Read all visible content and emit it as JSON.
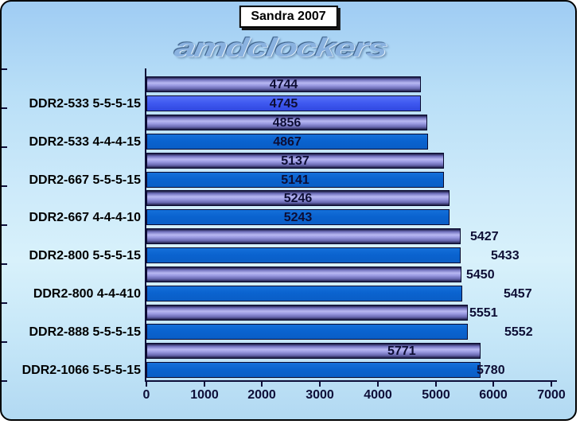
{
  "title": "Sandra 2007",
  "watermark": "amdclockers",
  "chart_data": {
    "type": "bar",
    "orientation": "horizontal",
    "title": "Sandra 2007",
    "xlabel": "",
    "ylabel": "",
    "xlim": [
      0,
      7000
    ],
    "xticks": [
      0,
      1000,
      2000,
      3000,
      4000,
      5000,
      6000,
      7000
    ],
    "grid": false,
    "legend": "none",
    "categories": [
      "DDR2-533 5-5-5-15",
      "DDR2-533 4-4-4-15",
      "DDR2-667 5-5-5-15",
      "DDR2-667 4-4-4-10",
      "DDR2-800 5-5-5-15",
      "DDR2-800 4-4-410",
      "DDR2-888 5-5-5-15",
      "DDR2-1066 5-5-5-15"
    ],
    "series": [
      {
        "name": "series-1-purple",
        "color": "#9a9ae2",
        "values": [
          4744,
          4856,
          5137,
          5246,
          5427,
          5450,
          5551,
          5771
        ]
      },
      {
        "name": "series-2-blue",
        "color": "#0a63cf",
        "values": [
          4745,
          4867,
          5141,
          5243,
          5433,
          5457,
          5552,
          5780
        ]
      }
    ]
  },
  "bars": [
    {
      "value": 4744,
      "series": "purple",
      "label_mode": "center",
      "label_dx": 0
    },
    {
      "value": 4745,
      "series": "royal",
      "label_mode": "center",
      "label_dx": 0
    },
    {
      "value": 4856,
      "series": "purple",
      "label_mode": "center",
      "label_dx": 0
    },
    {
      "value": 4867,
      "series": "blue",
      "label_mode": "center",
      "label_dx": 0
    },
    {
      "value": 5137,
      "series": "purple",
      "label_mode": "center",
      "label_dx": 0
    },
    {
      "value": 5141,
      "series": "blue",
      "label_mode": "center",
      "label_dx": 0
    },
    {
      "value": 5246,
      "series": "purple",
      "label_mode": "center",
      "label_dx": 0
    },
    {
      "value": 5243,
      "series": "blue",
      "label_mode": "center",
      "label_dx": 0
    },
    {
      "value": 5427,
      "series": "purple",
      "label_mode": "end",
      "label_dx": 12
    },
    {
      "value": 5433,
      "series": "blue",
      "label_mode": "end",
      "label_dx": 38
    },
    {
      "value": 5450,
      "series": "purple",
      "label_mode": "end",
      "label_dx": 6
    },
    {
      "value": 5457,
      "series": "blue",
      "label_mode": "end",
      "label_dx": 52
    },
    {
      "value": 5551,
      "series": "purple",
      "label_mode": "end",
      "label_dx": 2
    },
    {
      "value": 5552,
      "series": "blue",
      "label_mode": "end",
      "label_dx": 46
    },
    {
      "value": 5771,
      "series": "purple",
      "label_mode": "end",
      "label_dx": -117
    },
    {
      "value": 5780,
      "series": "blue",
      "label_mode": "end",
      "label_dx": -5
    }
  ],
  "colors": {
    "background_top": "#9fccf3",
    "background_mid": "#d8f1fb",
    "background_bottom": "#b2d9f2",
    "bar_purple_light": "#b8b8f2",
    "bar_blue": "#0a63cf",
    "bar_royal": "#3e58f0",
    "axis": "#0e0e38",
    "value_label": "#0d0d34",
    "category_label": "#000000",
    "title_box_bg": "#ffffff",
    "border": "#000000"
  }
}
